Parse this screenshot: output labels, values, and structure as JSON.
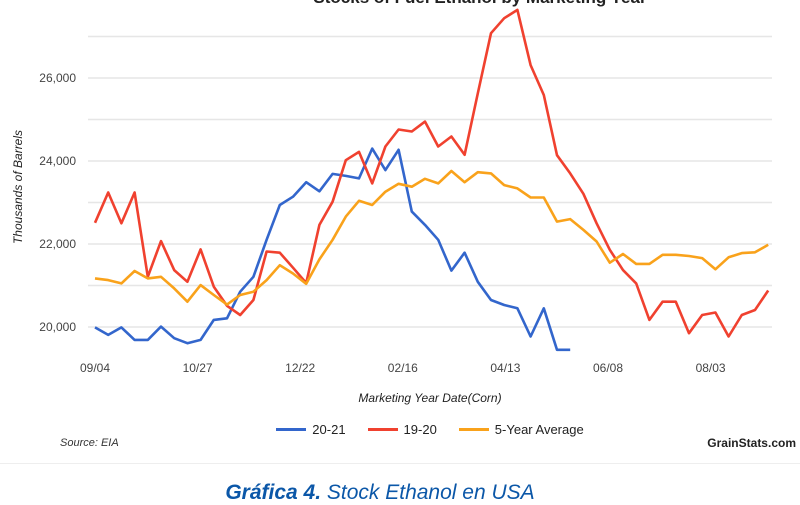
{
  "chart_data": {
    "type": "line",
    "title": "Stocks of Fuel Ethanol by Marketing Year",
    "xlabel": "Marketing Year Date(Corn)",
    "ylabel": "Thousands of Barrels",
    "x_tick_labels": [
      "09/04",
      "10/27",
      "12/22",
      "02/16",
      "04/13",
      "06/08",
      "08/03"
    ],
    "x_tick_every_weeks": 8,
    "y_ticks": [
      20000,
      22000,
      24000,
      26000
    ],
    "y_tick_labels": [
      "20,000",
      "22,000",
      "24,000",
      "26,000"
    ],
    "ylim": [
      19000,
      27700
    ],
    "grid": true,
    "legend_position": "bottom",
    "series": [
      {
        "name": "20-21",
        "color": "#3366cc",
        "values": [
          19990,
          19810,
          19990,
          19690,
          19690,
          20010,
          19730,
          19610,
          19690,
          20170,
          20210,
          20850,
          21210,
          22100,
          22940,
          23140,
          23490,
          23270,
          23690,
          23640,
          23580,
          24300,
          23780,
          24270,
          22780,
          22460,
          22100,
          21360,
          21790,
          21090,
          20650,
          20530,
          20450,
          19770,
          20450,
          19450,
          19450
        ]
      },
      {
        "name": "19-20",
        "color": "#f0412f",
        "values": [
          22510,
          23240,
          22500,
          23240,
          21210,
          22070,
          21370,
          21090,
          21870,
          20970,
          20510,
          20290,
          20650,
          21820,
          21790,
          21430,
          21060,
          22460,
          23020,
          24020,
          24220,
          23460,
          24350,
          24760,
          24710,
          24950,
          24350,
          24590,
          24150,
          25630,
          27080,
          27440,
          27640,
          26310,
          25590,
          24140,
          23700,
          23210,
          22500,
          21860,
          21370,
          21050,
          20170,
          20610,
          20610,
          19850,
          20290,
          20350,
          19770,
          20290,
          20410,
          20880
        ]
      },
      {
        "name": "5-Year Average",
        "color": "#f9a21b",
        "values": [
          21170,
          21130,
          21050,
          21350,
          21170,
          21210,
          20930,
          20610,
          21010,
          20770,
          20540,
          20770,
          20850,
          21130,
          21490,
          21290,
          21040,
          21630,
          22100,
          22660,
          23040,
          22940,
          23260,
          23450,
          23380,
          23570,
          23460,
          23760,
          23490,
          23730,
          23700,
          23420,
          23340,
          23120,
          23120,
          22540,
          22600,
          22340,
          22060,
          21550,
          21760,
          21520,
          21520,
          21740,
          21740,
          21710,
          21660,
          21390,
          21680,
          21780,
          21800,
          21980
        ]
      }
    ]
  },
  "footer": {
    "source": "Source: EIA",
    "brand": "GrainStats.com"
  },
  "caption": {
    "label": "Gráfica 4.",
    "text": " Stock Ethanol en USA"
  }
}
